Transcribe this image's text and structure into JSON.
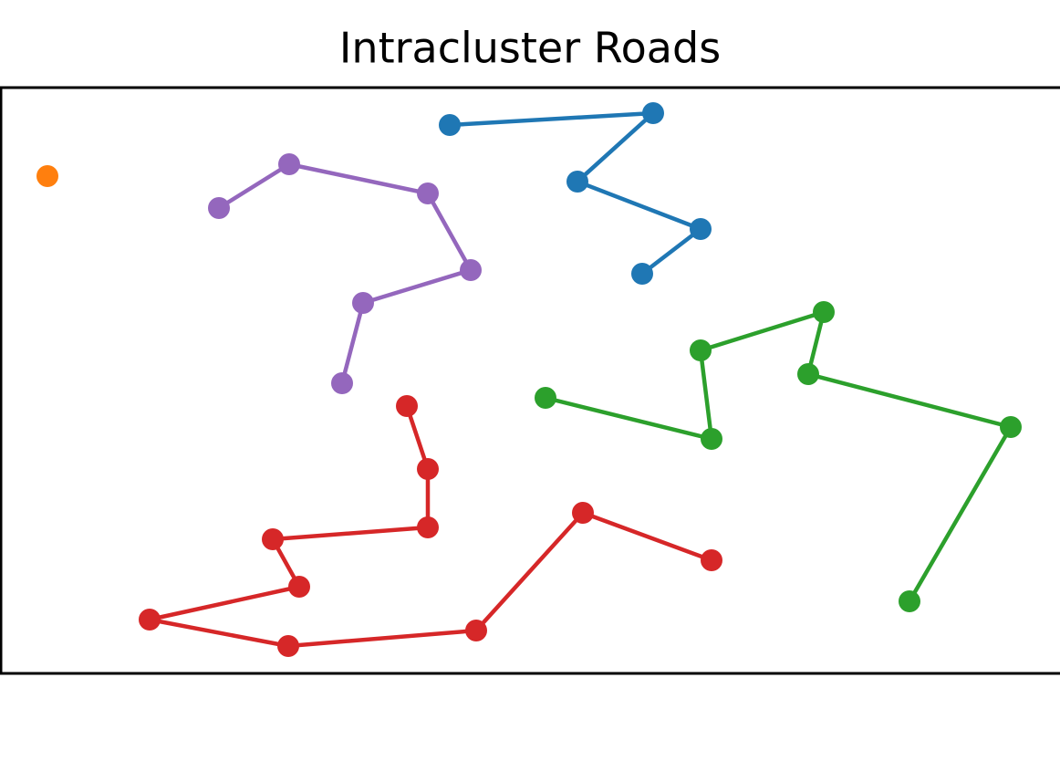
{
  "chart_data": {
    "type": "line",
    "title": "Intracluster Roads",
    "xlim": [
      0,
      1162
    ],
    "ylim": [
      0,
      642
    ],
    "series": [
      {
        "color": "#1f77b4",
        "x": [
          493,
          716,
          633,
          768,
          704
        ],
        "values": [
          601,
          614,
          539,
          487,
          438
        ]
      },
      {
        "color": "#ff7f0e",
        "x": [
          52
        ],
        "values": [
          545
        ]
      },
      {
        "color": "#9467bd",
        "x": [
          240,
          317,
          469,
          516,
          398,
          375
        ],
        "values": [
          510,
          558,
          526,
          442,
          406,
          318
        ]
      },
      {
        "color": "#2ca02c",
        "x": [
          598,
          780,
          768,
          903,
          886,
          1108,
          997
        ],
        "values": [
          302,
          257,
          354,
          396,
          328,
          270,
          79
        ]
      },
      {
        "color": "#d62728",
        "x": [
          446,
          469,
          469,
          299,
          328,
          164,
          316,
          522,
          639,
          780
        ],
        "values": [
          293,
          224,
          160,
          147,
          95,
          59,
          30,
          47,
          176,
          124
        ]
      }
    ]
  }
}
